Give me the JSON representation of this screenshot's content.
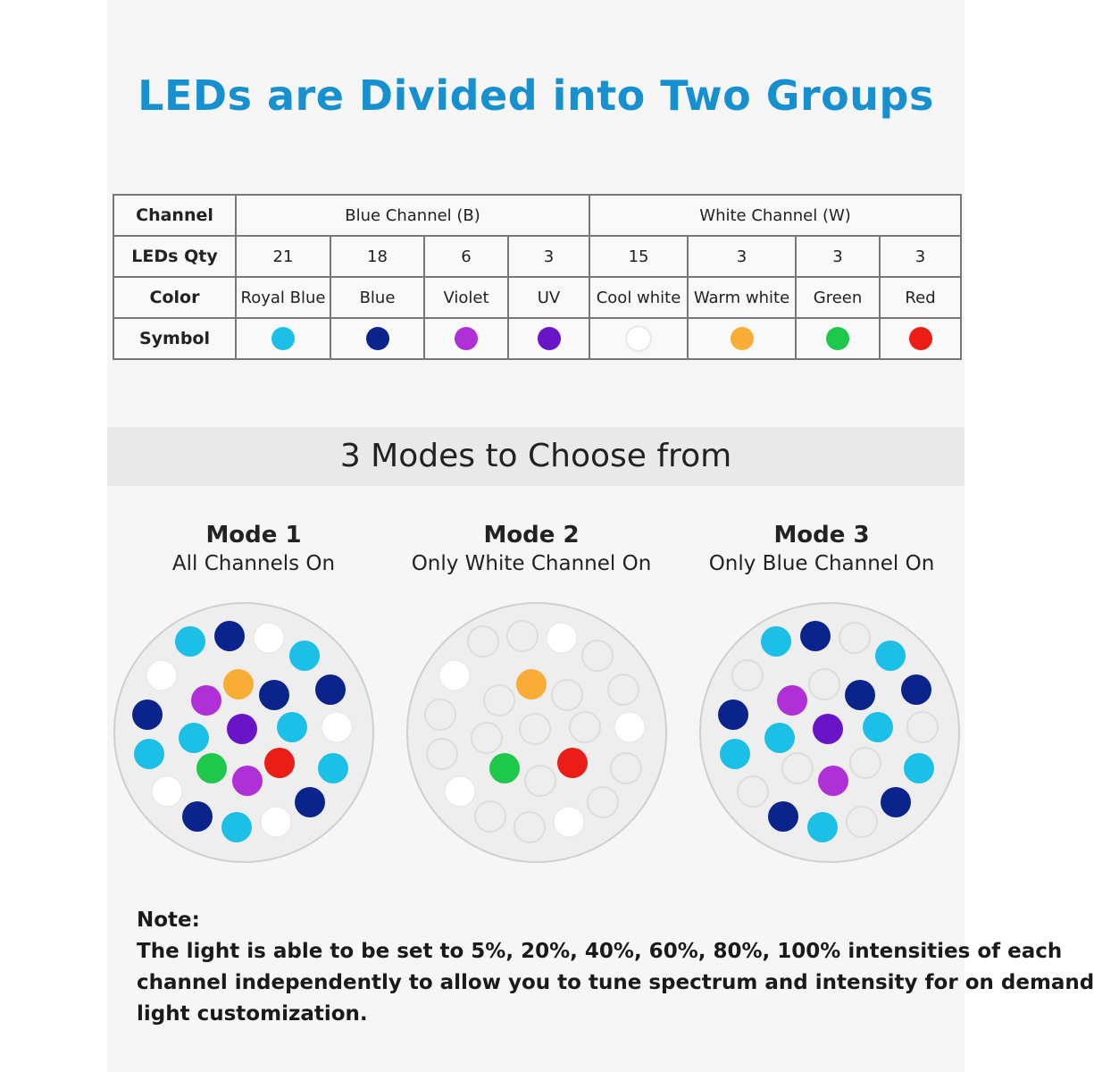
{
  "title": "LEDs are Divided into Two Groups",
  "table": {
    "row_labels": {
      "channel": "Channel",
      "qty": "LEDs Qty",
      "color": "Color",
      "symbol": "Symbol"
    },
    "blue_channel": "Blue Channel (B)",
    "white_channel": "White Channel (W)",
    "leds": [
      {
        "qty": "21",
        "color": "Royal Blue",
        "hex": "#1cc0e6"
      },
      {
        "qty": "18",
        "color": "Blue",
        "hex": "#0b248c"
      },
      {
        "qty": "6",
        "color": "Violet",
        "hex": "#b030d8"
      },
      {
        "qty": "3",
        "color": "UV",
        "hex": "#6a14c8"
      },
      {
        "qty": "15",
        "color": "Cool white",
        "hex": "#ffffff"
      },
      {
        "qty": "3",
        "color": "Warm white",
        "hex": "#f8ae36"
      },
      {
        "qty": "3",
        "color": "Green",
        "hex": "#1ec84a"
      },
      {
        "qty": "3",
        "color": "Red",
        "hex": "#ea1e16"
      }
    ]
  },
  "modes_title": "3 Modes to Choose from",
  "modes": [
    {
      "name": "Mode 1",
      "desc": "All Channels On"
    },
    {
      "name": "Mode 2",
      "desc": "Only White Channel On"
    },
    {
      "name": "Mode 3",
      "desc": "Only Blue Channel On"
    }
  ],
  "note": {
    "label": "Note:",
    "lines": [
      "The light is able to be set to 5%, 20%, 40%, 60%, 80%, 100% intensities of each",
      "channel independently to allow you to tune spectrum and intensity for on demand",
      "light customization."
    ]
  },
  "colors": {
    "title": "#1690cf",
    "royal_blue": "#1cc0e6",
    "blue": "#0b248c",
    "violet": "#b030d8",
    "uv": "#6a14c8",
    "cool_white": "#ffffff",
    "warm_white": "#f8ae36",
    "green": "#1ec84a",
    "red": "#ea1e16",
    "disc": "#eeeeee",
    "off_led": "#dddddd"
  }
}
